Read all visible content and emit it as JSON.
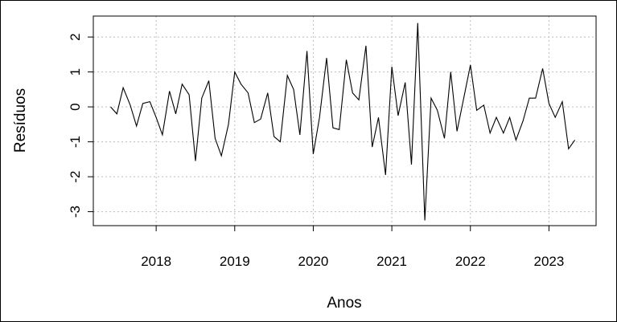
{
  "chart_data": {
    "type": "line",
    "xlabel": "Anos",
    "ylabel": "Resíduos",
    "xlim": [
      2017.2,
      2023.6
    ],
    "ylim": [
      -3.4,
      2.6
    ],
    "x_ticks": [
      2018,
      2019,
      2020,
      2021,
      2022,
      2023
    ],
    "y_ticks": [
      -3,
      -2,
      -1,
      0,
      1,
      2
    ],
    "x_tick_labels": [
      "2018",
      "2019",
      "2020",
      "2021",
      "2022",
      "2023"
    ],
    "y_tick_labels": [
      "-3",
      "-2",
      "-1",
      "0",
      "1",
      "2"
    ],
    "grid": true,
    "line_color": "#000000",
    "grid_color": "#bdbdbd",
    "series": [
      {
        "x": [
          2017.42,
          2017.5,
          2017.58,
          2017.67,
          2017.75,
          2017.83,
          2017.92,
          2018.0,
          2018.08,
          2018.17,
          2018.25,
          2018.33,
          2018.42,
          2018.5,
          2018.58,
          2018.67,
          2018.75,
          2018.83,
          2018.92,
          2019.0,
          2019.08,
          2019.17,
          2019.25,
          2019.33,
          2019.42,
          2019.5,
          2019.58,
          2019.67,
          2019.75,
          2019.83,
          2019.92,
          2020.0,
          2020.08,
          2020.17,
          2020.25,
          2020.33,
          2020.42,
          2020.5,
          2020.58,
          2020.67,
          2020.75,
          2020.83,
          2020.92,
          2021.0,
          2021.08,
          2021.17,
          2021.25,
          2021.33,
          2021.42,
          2021.5,
          2021.58,
          2021.67,
          2021.75,
          2021.83,
          2021.92,
          2022.0,
          2022.08,
          2022.17,
          2022.25,
          2022.33,
          2022.42,
          2022.5,
          2022.58,
          2022.67,
          2022.75,
          2022.83,
          2022.92,
          2023.0,
          2023.08,
          2023.17,
          2023.25,
          2023.33
        ],
        "y": [
          0.0,
          -0.2,
          0.55,
          0.05,
          -0.55,
          0.1,
          0.15,
          -0.3,
          -0.8,
          0.45,
          -0.2,
          0.65,
          0.35,
          -1.55,
          0.25,
          0.75,
          -0.9,
          -1.4,
          -0.5,
          1.0,
          0.65,
          0.4,
          -0.45,
          -0.35,
          0.4,
          -0.85,
          -1.0,
          0.9,
          0.5,
          -0.8,
          1.6,
          -1.35,
          -0.3,
          1.4,
          -0.6,
          -0.65,
          1.35,
          0.4,
          0.2,
          1.75,
          -1.15,
          -0.3,
          -1.95,
          1.15,
          -0.25,
          0.7,
          -1.65,
          2.4,
          -3.25,
          0.25,
          -0.1,
          -0.9,
          1.0,
          -0.7,
          0.3,
          1.2,
          -0.1,
          0.05,
          -0.75,
          -0.3,
          -0.75,
          -0.3,
          -0.95,
          -0.4,
          0.25,
          0.25,
          1.1,
          0.1,
          -0.3,
          0.15,
          -1.2,
          -0.95
        ]
      }
    ]
  }
}
